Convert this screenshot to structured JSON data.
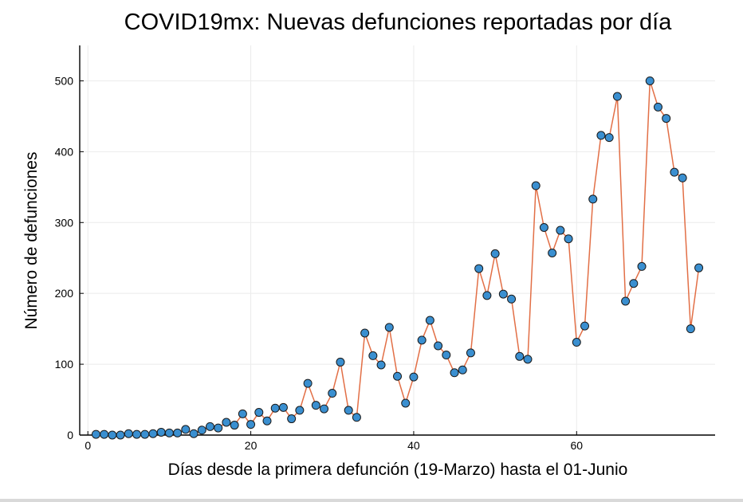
{
  "chart_data": {
    "type": "line",
    "title": "COVID19mx: Nuevas defunciones reportadas por día",
    "xlabel": "Días desde la primera defunción (19-Marzo) hasta el 01-Junio",
    "ylabel": "Número de defunciones",
    "xlim": [
      -1,
      77
    ],
    "ylim": [
      0,
      550
    ],
    "xticks": [
      0,
      20,
      40,
      60
    ],
    "yticks": [
      0,
      100,
      200,
      300,
      400,
      500
    ],
    "grid": true,
    "legend": "none",
    "colors": {
      "line": "#e26f46",
      "marker": "#3a8fd0"
    },
    "x": [
      1,
      2,
      3,
      4,
      5,
      6,
      7,
      8,
      9,
      10,
      11,
      12,
      13,
      14,
      15,
      16,
      17,
      18,
      19,
      20,
      21,
      22,
      23,
      24,
      25,
      26,
      27,
      28,
      29,
      30,
      31,
      32,
      33,
      34,
      35,
      36,
      37,
      38,
      39,
      40,
      41,
      42,
      43,
      44,
      45,
      46,
      47,
      48,
      49,
      50,
      51,
      52,
      53,
      54,
      55,
      56,
      57,
      58,
      59,
      60,
      61,
      62,
      63,
      64,
      65,
      66,
      67,
      68,
      69,
      70,
      71,
      72,
      73,
      74,
      75
    ],
    "values": [
      1,
      1,
      0,
      0,
      2,
      1,
      1,
      2,
      4,
      3,
      3,
      8,
      2,
      7,
      12,
      10,
      18,
      14,
      30,
      15,
      32,
      20,
      38,
      39,
      23,
      35,
      73,
      42,
      37,
      59,
      103,
      35,
      25,
      144,
      112,
      99,
      152,
      83,
      45,
      82,
      134,
      162,
      126,
      113,
      88,
      92,
      116,
      235,
      197,
      256,
      199,
      192,
      111,
      107,
      352,
      293,
      257,
      289,
      277,
      131,
      154,
      333,
      423,
      420,
      478,
      189,
      214,
      238,
      500,
      463,
      447,
      371,
      363,
      150,
      236
    ]
  }
}
